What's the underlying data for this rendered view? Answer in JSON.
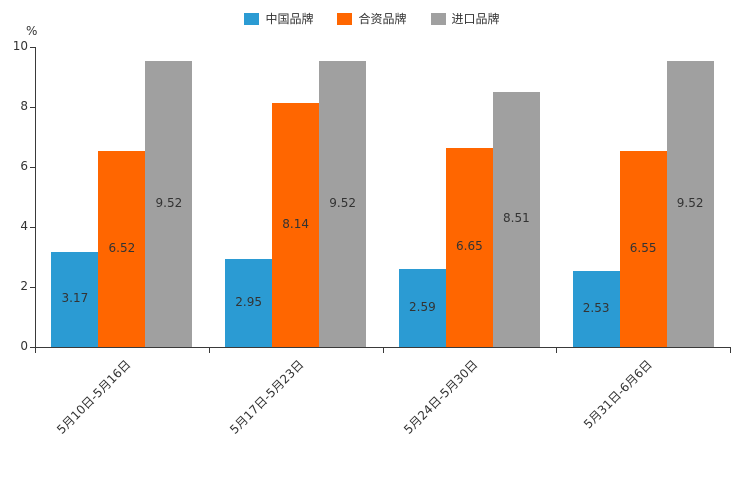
{
  "chart_data": {
    "type": "bar",
    "title": "",
    "xlabel": "",
    "ylabel": "%",
    "ylim": [
      0,
      10
    ],
    "yticks": [
      0,
      2,
      4,
      6,
      8,
      10
    ],
    "grid": false,
    "legend_position": "top",
    "categories": [
      "5月10日-5月16日",
      "5月17日-5月23日",
      "5月24日-5月30日",
      "5月31日-6月6日"
    ],
    "series": [
      {
        "name": "中国品牌",
        "color": "#2B9BD3",
        "values": [
          3.17,
          2.95,
          2.59,
          2.53
        ]
      },
      {
        "name": "合资品牌",
        "color": "#FF6600",
        "values": [
          6.52,
          8.14,
          6.65,
          6.55
        ]
      },
      {
        "name": "进口品牌",
        "color": "#A0A0A0",
        "values": [
          9.52,
          9.52,
          8.51,
          9.52
        ]
      }
    ]
  }
}
